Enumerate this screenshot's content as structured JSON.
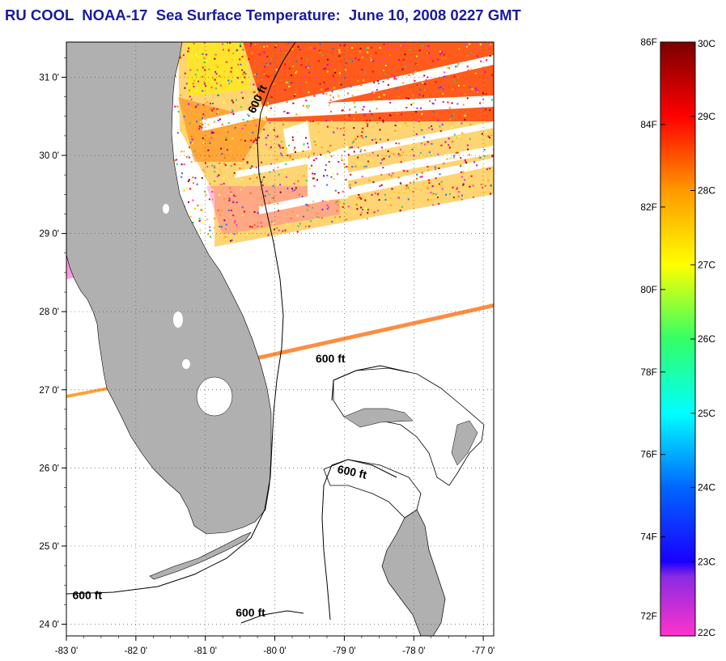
{
  "title": "RU COOL  NOAA-17  Sea Surface Temperature:  June 10, 2008 0227 GMT",
  "map": {
    "lon_range": [
      -83.0,
      -76.85
    ],
    "lat_range": [
      23.85,
      31.45
    ],
    "lat_ticks": [
      {
        "value": 31,
        "label": "31 0'"
      },
      {
        "value": 30,
        "label": "30 0'"
      },
      {
        "value": 29,
        "label": "29 0'"
      },
      {
        "value": 28,
        "label": "28 0'"
      },
      {
        "value": 27,
        "label": "27 0'"
      },
      {
        "value": 26,
        "label": "26 0'"
      },
      {
        "value": 25,
        "label": "25 0'"
      },
      {
        "value": 24,
        "label": "24 0'"
      }
    ],
    "lon_ticks": [
      {
        "value": -83,
        "label": "-83 0'"
      },
      {
        "value": -82,
        "label": "-82 0'"
      },
      {
        "value": -81,
        "label": "-81 0'"
      },
      {
        "value": -80,
        "label": "-80 0'"
      },
      {
        "value": -79,
        "label": "-79 0'"
      },
      {
        "value": -78,
        "label": "-78 0'"
      },
      {
        "value": -77,
        "label": "-77 0'"
      }
    ],
    "gridlines": true,
    "land_color": "#b0b0b0",
    "contour_labels": [
      {
        "text": "600 ft",
        "lon": -80.2,
        "lat": 30.7
      },
      {
        "text": "600 ft",
        "lon": -79.2,
        "lat": 27.35
      },
      {
        "text": "600 ft",
        "lon": -78.9,
        "lat": 25.9
      },
      {
        "text": "600 ft",
        "lon": -82.7,
        "lat": 24.32
      },
      {
        "text": "600 ft",
        "lon": -80.35,
        "lat": 24.1
      }
    ]
  },
  "colorbar": {
    "celsius_labels": [
      "30C",
      "29C",
      "28C",
      "27C",
      "26C",
      "25C",
      "24C",
      "23C",
      "22C"
    ],
    "fahrenheit_labels": [
      "86F",
      "84F",
      "82F",
      "80F",
      "78F",
      "76F",
      "74F",
      "72F"
    ],
    "stops": [
      {
        "color": "#ff33cc",
        "temp_c": 22
      },
      {
        "color": "#8a2be2",
        "temp_c": 22.8
      },
      {
        "color": "#1a00ff",
        "temp_c": 23
      },
      {
        "color": "#0066ff",
        "temp_c": 24
      },
      {
        "color": "#00ffff",
        "temp_c": 25
      },
      {
        "color": "#33ff66",
        "temp_c": 26
      },
      {
        "color": "#ffff00",
        "temp_c": 27
      },
      {
        "color": "#ff9900",
        "temp_c": 28
      },
      {
        "color": "#ff0000",
        "temp_c": 29
      },
      {
        "color": "#7a0000",
        "temp_c": 30
      }
    ]
  }
}
